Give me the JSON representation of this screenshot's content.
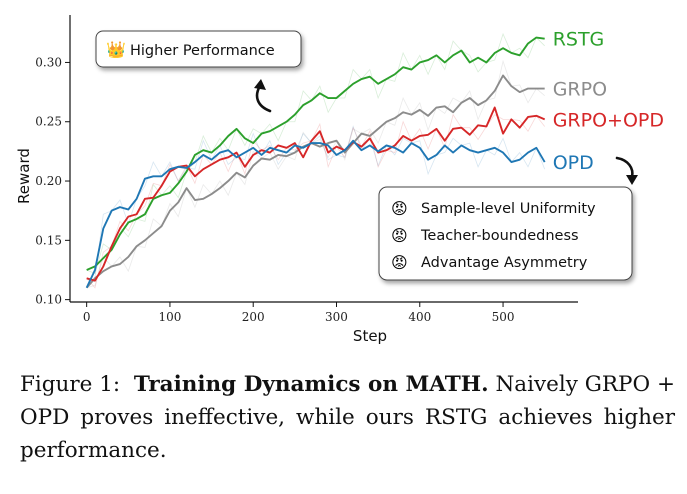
{
  "chart_data": {
    "type": "line",
    "xlabel": "Step",
    "ylabel": "Reward",
    "xlim": [
      -20,
      590
    ],
    "ylim": [
      0.098,
      0.34
    ],
    "xticks": [
      0,
      100,
      200,
      300,
      400,
      500
    ],
    "yticks": [
      0.1,
      0.15,
      0.2,
      0.25,
      0.3
    ],
    "ytick_labels": [
      "0.10",
      "0.15",
      "0.20",
      "0.25",
      "0.30"
    ],
    "grid": false,
    "series": [
      {
        "name": "RSTG",
        "color": "#2ca02c",
        "x": [
          0,
          10,
          20,
          30,
          40,
          50,
          60,
          70,
          80,
          90,
          100,
          110,
          120,
          130,
          140,
          150,
          160,
          170,
          180,
          190,
          200,
          210,
          220,
          230,
          240,
          250,
          260,
          270,
          280,
          290,
          300,
          310,
          320,
          330,
          340,
          350,
          360,
          370,
          380,
          390,
          400,
          410,
          420,
          430,
          440,
          450,
          460,
          470,
          480,
          490,
          500,
          510,
          520,
          530,
          540,
          550
        ],
        "values": [
          0.125,
          0.128,
          0.135,
          0.142,
          0.155,
          0.165,
          0.168,
          0.172,
          0.185,
          0.188,
          0.19,
          0.198,
          0.208,
          0.222,
          0.226,
          0.224,
          0.23,
          0.238,
          0.244,
          0.236,
          0.232,
          0.24,
          0.242,
          0.246,
          0.25,
          0.256,
          0.264,
          0.268,
          0.274,
          0.27,
          0.27,
          0.276,
          0.282,
          0.286,
          0.288,
          0.282,
          0.286,
          0.29,
          0.296,
          0.294,
          0.3,
          0.302,
          0.306,
          0.3,
          0.306,
          0.31,
          0.3,
          0.304,
          0.3,
          0.308,
          0.312,
          0.308,
          0.306,
          0.316,
          0.321,
          0.32
        ]
      },
      {
        "name": "GRPO",
        "color": "#8c8c8c",
        "x": [
          0,
          10,
          20,
          30,
          40,
          50,
          60,
          70,
          80,
          90,
          100,
          110,
          120,
          130,
          140,
          150,
          160,
          170,
          180,
          190,
          200,
          210,
          220,
          230,
          240,
          250,
          260,
          270,
          280,
          290,
          300,
          310,
          320,
          330,
          340,
          350,
          360,
          370,
          380,
          390,
          400,
          410,
          420,
          430,
          440,
          450,
          460,
          470,
          480,
          490,
          500,
          510,
          520,
          530,
          540,
          550
        ],
        "values": [
          0.11,
          0.118,
          0.124,
          0.128,
          0.13,
          0.136,
          0.145,
          0.15,
          0.156,
          0.162,
          0.175,
          0.182,
          0.194,
          0.184,
          0.185,
          0.189,
          0.194,
          0.2,
          0.207,
          0.203,
          0.213,
          0.219,
          0.218,
          0.222,
          0.221,
          0.224,
          0.229,
          0.232,
          0.229,
          0.232,
          0.234,
          0.224,
          0.232,
          0.24,
          0.238,
          0.244,
          0.25,
          0.253,
          0.258,
          0.256,
          0.26,
          0.255,
          0.262,
          0.263,
          0.258,
          0.266,
          0.27,
          0.264,
          0.268,
          0.276,
          0.289,
          0.28,
          0.275,
          0.278,
          0.278,
          0.278
        ]
      },
      {
        "name": "GRPO+OPD",
        "color": "#d62728",
        "x": [
          0,
          10,
          20,
          30,
          40,
          50,
          60,
          70,
          80,
          90,
          100,
          110,
          120,
          130,
          140,
          150,
          160,
          170,
          180,
          190,
          200,
          210,
          220,
          230,
          240,
          250,
          260,
          270,
          280,
          290,
          300,
          310,
          320,
          330,
          340,
          350,
          360,
          370,
          380,
          390,
          400,
          410,
          420,
          430,
          440,
          450,
          460,
          470,
          480,
          490,
          500,
          510,
          520,
          530,
          540,
          550
        ],
        "values": [
          0.118,
          0.116,
          0.128,
          0.145,
          0.16,
          0.17,
          0.172,
          0.185,
          0.186,
          0.196,
          0.208,
          0.212,
          0.213,
          0.204,
          0.21,
          0.214,
          0.218,
          0.22,
          0.224,
          0.212,
          0.222,
          0.226,
          0.224,
          0.23,
          0.228,
          0.232,
          0.22,
          0.234,
          0.242,
          0.224,
          0.229,
          0.226,
          0.233,
          0.229,
          0.236,
          0.224,
          0.226,
          0.23,
          0.238,
          0.234,
          0.238,
          0.239,
          0.244,
          0.234,
          0.244,
          0.245,
          0.239,
          0.247,
          0.246,
          0.262,
          0.24,
          0.252,
          0.245,
          0.254,
          0.255,
          0.252
        ]
      },
      {
        "name": "OPD",
        "color": "#1f77b4",
        "x": [
          0,
          10,
          20,
          30,
          40,
          50,
          60,
          70,
          80,
          90,
          100,
          110,
          120,
          130,
          140,
          150,
          160,
          170,
          180,
          190,
          200,
          210,
          220,
          230,
          240,
          250,
          260,
          270,
          280,
          290,
          300,
          310,
          320,
          330,
          340,
          350,
          360,
          370,
          380,
          390,
          400,
          410,
          420,
          430,
          440,
          450,
          460,
          470,
          480,
          490,
          500,
          510,
          520,
          530,
          540,
          550
        ],
        "values": [
          0.11,
          0.125,
          0.16,
          0.175,
          0.178,
          0.176,
          0.185,
          0.202,
          0.204,
          0.204,
          0.21,
          0.212,
          0.211,
          0.216,
          0.222,
          0.218,
          0.224,
          0.226,
          0.22,
          0.224,
          0.228,
          0.222,
          0.228,
          0.226,
          0.224,
          0.23,
          0.228,
          0.232,
          0.232,
          0.23,
          0.222,
          0.226,
          0.234,
          0.226,
          0.23,
          0.225,
          0.23,
          0.228,
          0.224,
          0.232,
          0.228,
          0.218,
          0.222,
          0.23,
          0.224,
          0.23,
          0.226,
          0.224,
          0.226,
          0.228,
          0.224,
          0.216,
          0.218,
          0.224,
          0.228,
          0.216
        ]
      }
    ],
    "annotations": {
      "higher_performance": {
        "emoji": "👑",
        "text": "Higher Performance"
      },
      "issues": [
        {
          "emoji": "😡",
          "text": "Sample-level Uniformity"
        },
        {
          "emoji": "😡",
          "text": "Teacher-boundedness"
        },
        {
          "emoji": "😡",
          "text": "Advantage Asymmetry"
        }
      ]
    }
  },
  "caption": {
    "figure_label": "Figure 1:",
    "title": "Training Dynamics on MATH.",
    "body": "Naively GRPO + OPD proves ineffective, while ours RSTG achieves higher performance."
  }
}
